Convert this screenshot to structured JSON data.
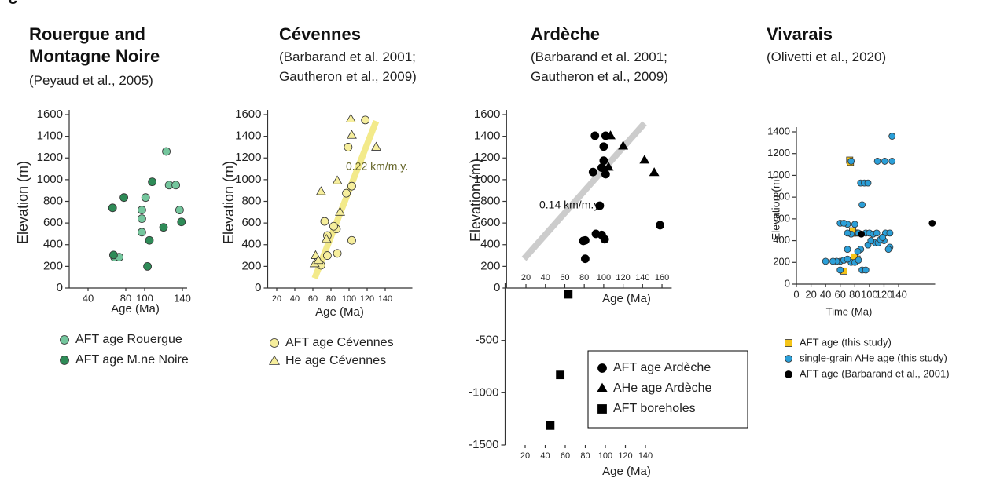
{
  "panel_label": "c",
  "chart_data": [
    {
      "type": "scatter",
      "title": "Rouergue and Montagne Noire",
      "subtitle": "(Peyaud et al., 2005)",
      "xlabel": "Age (Ma)",
      "ylabel": "Elevation (m)",
      "xlim": [
        20,
        145
      ],
      "xticks": [
        40,
        80,
        100,
        140
      ],
      "ylim": [
        0,
        1600
      ],
      "yticks": [
        0,
        200,
        400,
        600,
        800,
        1000,
        1200,
        1400,
        1600
      ],
      "series": [
        {
          "name": "AFT age Rouergue",
          "color": "#74c69d",
          "marker": "circle",
          "x": [
            123,
            126,
            133,
            101,
            137,
            97,
            97,
            68,
            73,
            97
          ],
          "values": [
            1260,
            950,
            950,
            835,
            720,
            640,
            515,
            285,
            285,
            720
          ]
        },
        {
          "name": "AFT age M.ne Noire",
          "color": "#2e8b57",
          "marker": "circle",
          "x": [
            108,
            78,
            66,
            120,
            139,
            105,
            67,
            103
          ],
          "values": [
            980,
            835,
            740,
            560,
            610,
            440,
            305,
            200
          ]
        }
      ]
    },
    {
      "type": "scatter",
      "title": "Cévennes",
      "subtitle": "(Barbarand et al. 2001; Gautheron et al., 2009)",
      "xlabel": "Age (Ma)",
      "ylabel": "Elevation (m)",
      "xlim": [
        10,
        170
      ],
      "xticks": [
        20,
        40,
        60,
        80,
        100,
        120,
        140
      ],
      "ylim": [
        0,
        1600
      ],
      "yticks": [
        0,
        200,
        400,
        600,
        800,
        1000,
        1200,
        1400,
        1600
      ],
      "trend": {
        "label": "0.22 km/m.y.",
        "color": "#f3ea8a",
        "x": [
          62,
          130
        ],
        "values": [
          90,
          1540
        ]
      },
      "series": [
        {
          "name": "AFT age Cévennes",
          "color": "#f6ee9c",
          "marker": "circle",
          "x": [
            118,
            99,
            103,
            97,
            73,
            86,
            83,
            76,
            76,
            87,
            103,
            69
          ],
          "values": [
            1550,
            1300,
            940,
            875,
            615,
            545,
            570,
            485,
            300,
            320,
            440,
            210
          ]
        },
        {
          "name": "He age Cévennes",
          "color": "#f6ee9c",
          "marker": "triangle",
          "x": [
            102,
            103,
            130,
            87,
            69,
            90,
            75,
            63,
            62,
            66
          ],
          "values": [
            1560,
            1410,
            1300,
            990,
            890,
            700,
            450,
            300,
            225,
            255
          ]
        }
      ]
    },
    {
      "type": "scatter",
      "title": "Ardèche",
      "subtitle": "(Barbarand et al. 2001; Gautheron et al., 2009)",
      "xlabel": "Age (Ma)",
      "ylabel": "Elevation (m)",
      "xlim": [
        0,
        170
      ],
      "xticks": [
        20,
        40,
        60,
        80,
        100,
        120,
        140,
        160
      ],
      "ylim": [
        0,
        1600
      ],
      "yticks": [
        0,
        200,
        400,
        600,
        800,
        1000,
        1200,
        1400,
        1600
      ],
      "trend": {
        "label": "0.14 km/m.y",
        "color": "#cccccc",
        "x": [
          18,
          142
        ],
        "values": [
          270,
          1520
        ]
      },
      "series": [
        {
          "name": "AFT age Ardèche",
          "color": "#000000",
          "marker": "circle",
          "x": [
            91,
            102,
            100,
            100,
            89,
            98,
            102,
            96,
            92,
            81,
            101,
            98,
            79,
            81,
            158
          ],
          "values": [
            1405,
            1405,
            1305,
            1175,
            1070,
            1110,
            1050,
            760,
            500,
            440,
            450,
            490,
            435,
            270,
            580
          ]
        },
        {
          "name": "AHe age Ardèche",
          "color": "#000000",
          "marker": "triangle",
          "x": [
            107,
            120,
            142,
            152,
            105
          ],
          "values": [
            1405,
            1310,
            1180,
            1065,
            1115
          ]
        }
      ]
    },
    {
      "type": "scatter",
      "xlabel": "Age (Ma)",
      "xlim": [
        0,
        170
      ],
      "xticks": [
        20,
        40,
        60,
        80,
        100,
        120,
        140
      ],
      "ylim": [
        -1500,
        0
      ],
      "yticks": [
        -1500,
        -1000,
        -500
      ],
      "series": [
        {
          "name": "AFT boreholes",
          "color": "#000000",
          "marker": "square",
          "x": [
            63,
            55,
            45
          ],
          "values": [
            -60,
            -830,
            -1315
          ]
        }
      ]
    },
    {
      "type": "scatter",
      "title": "Vivarais",
      "subtitle": "(Olivetti et al., 2020)",
      "xlabel": "Time (Ma)",
      "ylabel": "Elevation (m)",
      "xlim": [
        0,
        190
      ],
      "xticks": [
        0,
        20,
        40,
        60,
        80,
        100,
        120,
        140
      ],
      "ylim": [
        0,
        1400
      ],
      "yticks": [
        0,
        200,
        400,
        600,
        800,
        1000,
        1200,
        1400
      ],
      "series": [
        {
          "name": "AFT age (this study)",
          "color": "#f5c518",
          "marker": "square",
          "x": [
            73,
            74,
            80,
            77,
            77,
            83,
            76,
            65,
            79
          ],
          "values": [
            1140,
            1120,
            470,
            470,
            490,
            230,
            215,
            120,
            250
          ]
        },
        {
          "name": "single-grain AHe age (this study)",
          "color": "#2b9fd8",
          "marker": "circle",
          "x": [
            75,
            121,
            111,
            131,
            131,
            88,
            93,
            98,
            90,
            80,
            70,
            60,
            65,
            75,
            70,
            85,
            95,
            100,
            105,
            110,
            122,
            128,
            120,
            108,
            112,
            98,
            102,
            128,
            126,
            88,
            84,
            70,
            60,
            55,
            50,
            40,
            65,
            75,
            80,
            85,
            90,
            95,
            60,
            70,
            115,
            118
          ],
          "values": [
            1130,
            1130,
            1130,
            1130,
            1360,
            930,
            930,
            930,
            730,
            550,
            550,
            560,
            560,
            460,
            470,
            470,
            470,
            470,
            460,
            470,
            470,
            470,
            400,
            380,
            380,
            360,
            400,
            340,
            320,
            320,
            300,
            320,
            210,
            210,
            210,
            210,
            220,
            200,
            200,
            220,
            130,
            130,
            130,
            230,
            410,
            430
          ]
        },
        {
          "name": "AFT age (Barbarand et al., 2001)",
          "color": "#000000",
          "marker": "circle",
          "x": [
            89,
            186
          ],
          "values": [
            460,
            560
          ]
        }
      ]
    }
  ]
}
